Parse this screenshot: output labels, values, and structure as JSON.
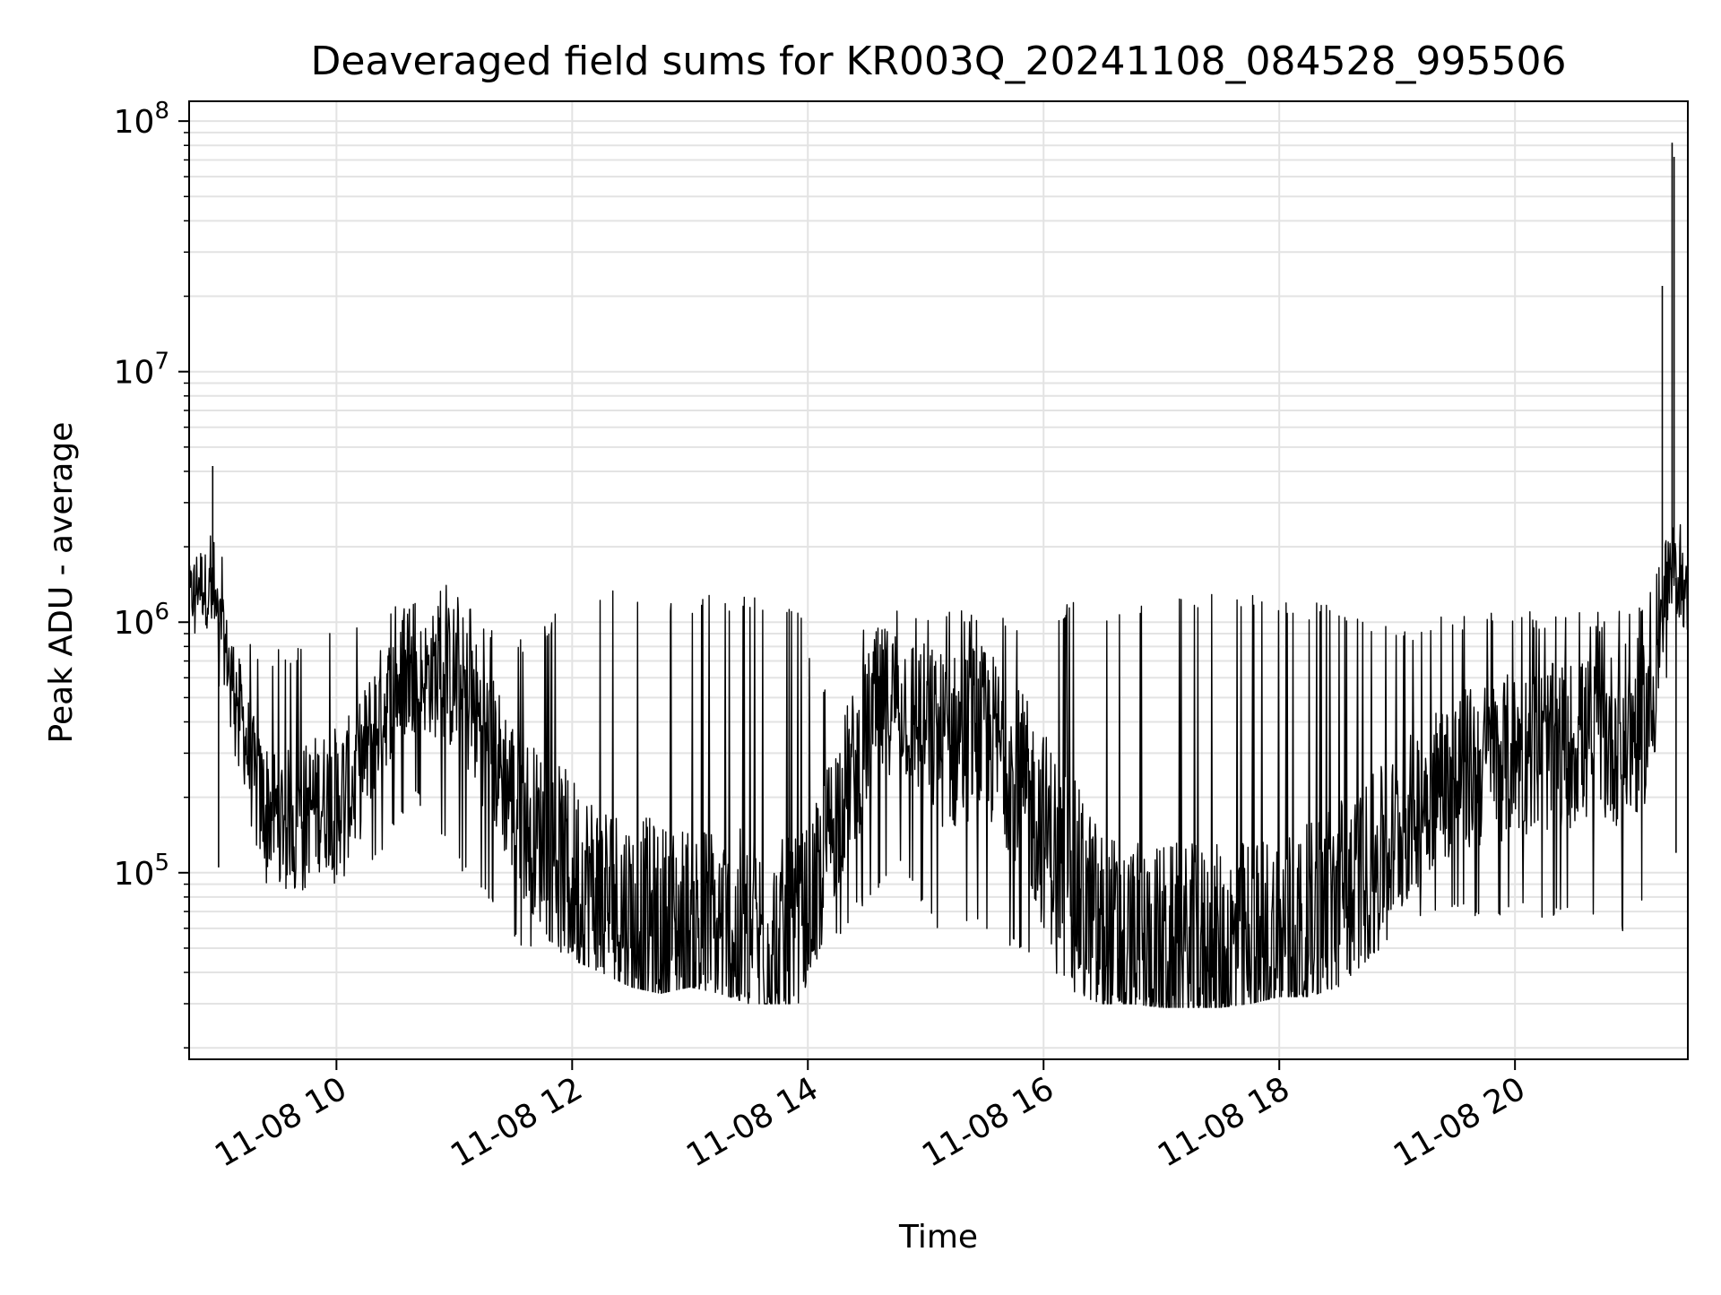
{
  "chart_data": {
    "type": "line",
    "title": "Deaveraged field sums for KR003Q_20241108_084528_995506",
    "xlabel": "Time",
    "ylabel": "Peak ADU - average",
    "yscale": "log",
    "xlim": [
      "2024-11-08 08:45",
      "2024-11-08 21:28"
    ],
    "ylim": [
      18000,
      120000000
    ],
    "grid": true,
    "color": "#000000",
    "x_ticks": [
      {
        "value": "2024-11-08 10:00",
        "label": "11-08 10"
      },
      {
        "value": "2024-11-08 12:00",
        "label": "11-08 12"
      },
      {
        "value": "2024-11-08 14:00",
        "label": "11-08 14"
      },
      {
        "value": "2024-11-08 16:00",
        "label": "11-08 16"
      },
      {
        "value": "2024-11-08 18:00",
        "label": "11-08 18"
      },
      {
        "value": "2024-11-08 20:00",
        "label": "11-08 20"
      }
    ],
    "y_ticks": [
      {
        "value": 100000,
        "base": "10",
        "exp": "5"
      },
      {
        "value": 1000000,
        "base": "10",
        "exp": "6"
      },
      {
        "value": 10000000,
        "base": "10",
        "exp": "7"
      },
      {
        "value": 100000000,
        "base": "10",
        "exp": "8"
      }
    ],
    "series": [
      {
        "x": [
          "2024-11-08 08:45",
          "2024-11-08 08:50",
          "2024-11-08 08:55",
          "2024-11-08 09:00",
          "2024-11-08 09:05",
          "2024-11-08 09:10",
          "2024-11-08 09:15",
          "2024-11-08 09:20",
          "2024-11-08 09:30",
          "2024-11-08 09:40",
          "2024-11-08 09:50",
          "2024-11-08 10:00",
          "2024-11-08 10:10",
          "2024-11-08 10:20",
          "2024-11-08 10:30",
          "2024-11-08 10:40",
          "2024-11-08 10:50",
          "2024-11-08 11:00",
          "2024-11-08 11:10",
          "2024-11-08 11:20",
          "2024-11-08 11:30",
          "2024-11-08 11:40",
          "2024-11-08 11:50",
          "2024-11-08 12:00",
          "2024-11-08 12:15",
          "2024-11-08 12:30",
          "2024-11-08 12:45",
          "2024-11-08 13:00",
          "2024-11-08 13:15",
          "2024-11-08 13:30",
          "2024-11-08 13:45",
          "2024-11-08 13:55",
          "2024-11-08 14:05",
          "2024-11-08 14:15",
          "2024-11-08 14:25",
          "2024-11-08 14:35",
          "2024-11-08 14:45",
          "2024-11-08 14:55",
          "2024-11-08 15:05",
          "2024-11-08 15:15",
          "2024-11-08 15:25",
          "2024-11-08 15:35",
          "2024-11-08 15:45",
          "2024-11-08 16:00",
          "2024-11-08 16:15",
          "2024-11-08 16:30",
          "2024-11-08 16:45",
          "2024-11-08 17:00",
          "2024-11-08 17:15",
          "2024-11-08 17:30",
          "2024-11-08 17:45",
          "2024-11-08 18:00",
          "2024-11-08 18:15",
          "2024-11-08 18:30",
          "2024-11-08 18:45",
          "2024-11-08 19:00",
          "2024-11-08 19:15",
          "2024-11-08 19:30",
          "2024-11-08 19:45",
          "2024-11-08 20:00",
          "2024-11-08 20:15",
          "2024-11-08 20:30",
          "2024-11-08 20:45",
          "2024-11-08 21:00",
          "2024-11-08 21:10",
          "2024-11-08 21:15",
          "2024-11-08 21:20",
          "2024-11-08 21:25",
          "2024-11-08 21:28"
        ],
        "y": [
          1200000,
          1500000,
          1300000,
          1000000,
          700000,
          500000,
          300000,
          200000,
          170000,
          170000,
          190000,
          200000,
          230000,
          400000,
          550000,
          600000,
          620000,
          600000,
          450000,
          300000,
          200000,
          150000,
          120000,
          100000,
          80000,
          65000,
          58000,
          60000,
          58000,
          52000,
          50000,
          50000,
          100000,
          180000,
          280000,
          450000,
          520000,
          420000,
          350000,
          330000,
          380000,
          330000,
          260000,
          150000,
          90000,
          55000,
          48000,
          47000,
          46000,
          46000,
          50000,
          55000,
          58000,
          80000,
          100000,
          140000,
          210000,
          250000,
          270000,
          300000,
          310000,
          330000,
          340000,
          360000,
          450000,
          1000000,
          1500000,
          1500000,
          1100000
        ],
        "low": [
          800000,
          900000,
          700000,
          550000,
          400000,
          250000,
          120000,
          90000,
          85000,
          85000,
          85000,
          90000,
          90000,
          110000,
          150000,
          200000,
          150000,
          110000,
          90000,
          75000,
          55000,
          45000,
          45000,
          45000,
          40000,
          35000,
          33000,
          35000,
          33000,
          30000,
          30000,
          30000,
          45000,
          55000,
          70000,
          80000,
          110000,
          80000,
          60000,
          55000,
          60000,
          55000,
          50000,
          40000,
          33000,
          30000,
          30000,
          29000,
          29000,
          29000,
          30000,
          32000,
          32000,
          35000,
          45000,
          55000,
          65000,
          70000,
          65000,
          70000,
          65000,
          65000,
          60000,
          55000,
          100000,
          400000,
          800000,
          700000,
          500000
        ],
        "high": [
          2600000,
          3000000,
          2500000,
          2200000,
          1500000,
          1100000,
          900000,
          800000,
          800000,
          800000,
          900000,
          1000000,
          1000000,
          1100000,
          1200000,
          1200000,
          1300000,
          1500000,
          1200000,
          1000000,
          900000,
          800000,
          1100000,
          1200000,
          1300000,
          1400000,
          1300000,
          1300000,
          1300000,
          1300000,
          1200000,
          1200000,
          500000,
          900000,
          1000000,
          1200000,
          1300000,
          1200000,
          1200000,
          1200000,
          1100000,
          1100000,
          1000000,
          1200000,
          1200000,
          1200000,
          1200000,
          1300000,
          1300000,
          1300000,
          1300000,
          1300000,
          1200000,
          1200000,
          1000000,
          1000000,
          1000000,
          1100000,
          1100000,
          1100000,
          1100000,
          1100000,
          1100000,
          1200000,
          1500000,
          2000000,
          2500000,
          3000000,
          2000000
        ]
      }
    ],
    "spikes": [
      {
        "x": "2024-11-08 08:57",
        "y": 4200000
      },
      {
        "x": "2024-11-08 09:00",
        "y": 105000
      },
      {
        "x": "2024-11-08 21:15",
        "y": 22000000
      },
      {
        "x": "2024-11-08 21:20",
        "y": 82000000
      },
      {
        "x": "2024-11-08 21:21",
        "y": 72000000
      },
      {
        "x": "2024-11-08 21:22",
        "y": 120000
      }
    ]
  }
}
